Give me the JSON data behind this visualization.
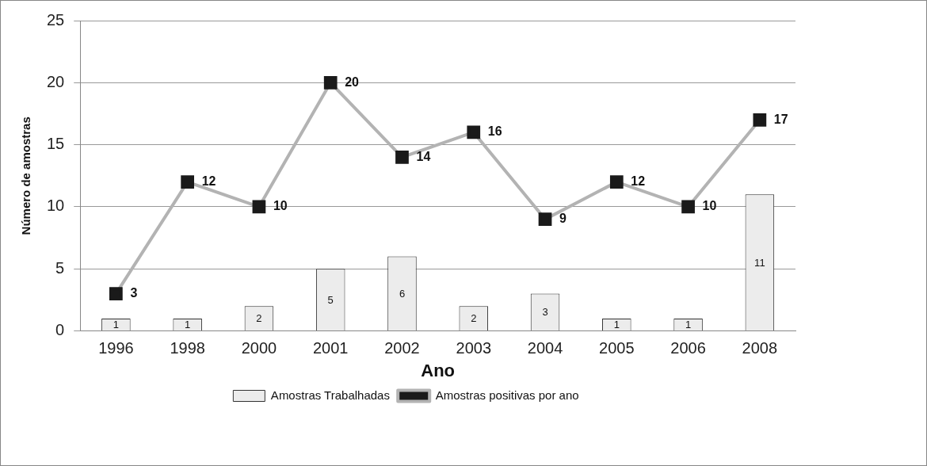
{
  "chart_data": {
    "type": "bar",
    "xlabel": "Ano",
    "ylabel": "Número de amostras",
    "categories": [
      "1996",
      "1998",
      "2000",
      "2001",
      "2002",
      "2003",
      "2004",
      "2005",
      "2006",
      "2008"
    ],
    "series": [
      {
        "name": "Amostras Trabalhadas",
        "color": "#ececec",
        "values": [
          1,
          1,
          2,
          5,
          6,
          2,
          3,
          1,
          1,
          11
        ]
      },
      {
        "name": "Amostras positivas por ano",
        "type": "line",
        "color": "#b3b3b3",
        "marker": "square",
        "values": [
          3,
          12,
          10,
          20,
          14,
          16,
          9,
          12,
          10,
          17
        ]
      }
    ],
    "ylim": [
      0,
      25
    ],
    "yticks": [
      0,
      5,
      10,
      15,
      20,
      25
    ],
    "grid": "y",
    "legend": "bottom",
    "data_labels": true
  }
}
